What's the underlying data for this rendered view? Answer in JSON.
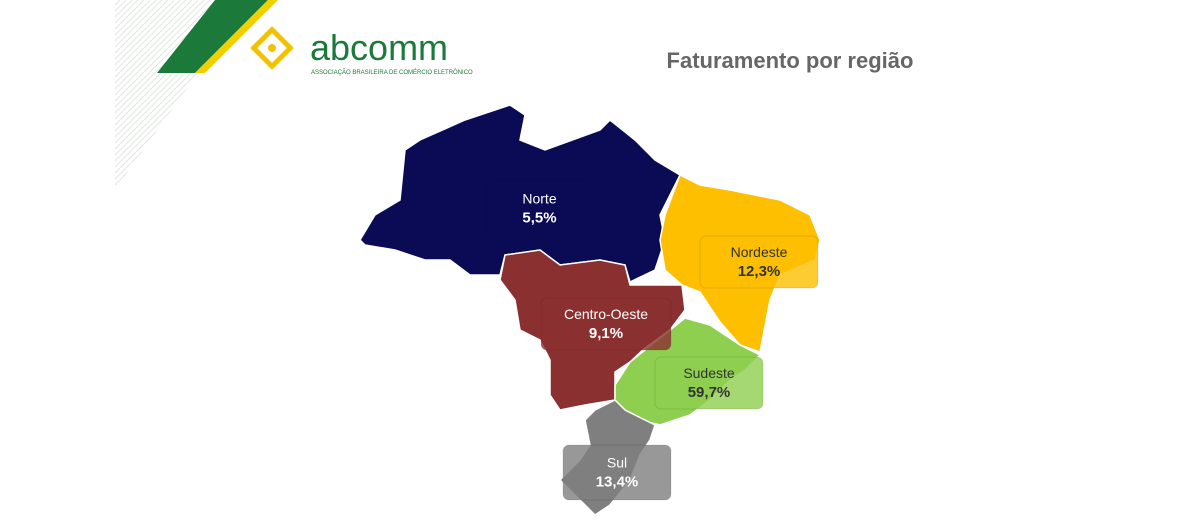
{
  "logo": {
    "name": "abcomm",
    "subtitle": "ASSOCIAÇÃO BRASILEIRA DE COMÉRCIO ELETRÔNICO"
  },
  "title": "Faturamento por região",
  "regions": [
    {
      "name": "Norte",
      "value": "5,5%",
      "color": "#0b0b55",
      "label_color": "#ffffff"
    },
    {
      "name": "Nordeste",
      "value": "12,3%",
      "color": "#fdbf00",
      "label_color": "#333333"
    },
    {
      "name": "Centro-Oeste",
      "value": "9,1%",
      "color": "#8b3030",
      "label_color": "#ffffff"
    },
    {
      "name": "Sudeste",
      "value": "59,7%",
      "color": "#8fcf4f",
      "label_color": "#333333"
    },
    {
      "name": "Sul",
      "value": "13,4%",
      "color": "#7f7f7f",
      "label_color": "#ffffff"
    }
  ]
}
